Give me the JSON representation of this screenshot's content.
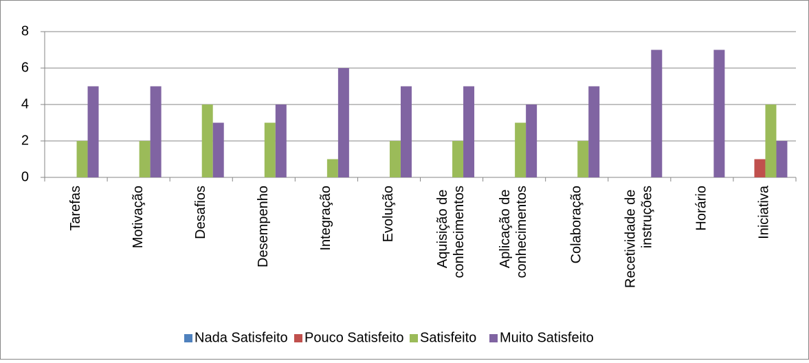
{
  "chart_data": {
    "type": "bar",
    "categories": [
      "Tarefas",
      "Motivação",
      "Desafios",
      "Desempenho",
      "Integração",
      "Evolução",
      "Aquisição de conhecimentos",
      "Aplicação de conhecimentos",
      "Colaboração",
      "Recetividade de instruções",
      "Horário",
      "Iniciativa"
    ],
    "series": [
      {
        "name": "Nada Satisfeito",
        "color": "#4f81bd",
        "values": [
          0,
          0,
          0,
          0,
          0,
          0,
          0,
          0,
          0,
          0,
          0,
          0
        ]
      },
      {
        "name": "Pouco Satisfeito",
        "color": "#c0504d",
        "values": [
          0,
          0,
          0,
          0,
          0,
          0,
          0,
          0,
          0,
          0,
          0,
          1
        ]
      },
      {
        "name": "Satisfeito",
        "color": "#9bbb59",
        "values": [
          2,
          2,
          4,
          3,
          1,
          2,
          2,
          3,
          2,
          0,
          0,
          4
        ]
      },
      {
        "name": "Muito Satisfeito",
        "color": "#8064a2",
        "values": [
          5,
          5,
          3,
          4,
          6,
          5,
          5,
          4,
          5,
          7,
          7,
          2
        ]
      }
    ],
    "ylim": [
      0,
      8
    ],
    "yticks": [
      0,
      2,
      4,
      6,
      8
    ],
    "grid": true,
    "legend": "bottom"
  }
}
